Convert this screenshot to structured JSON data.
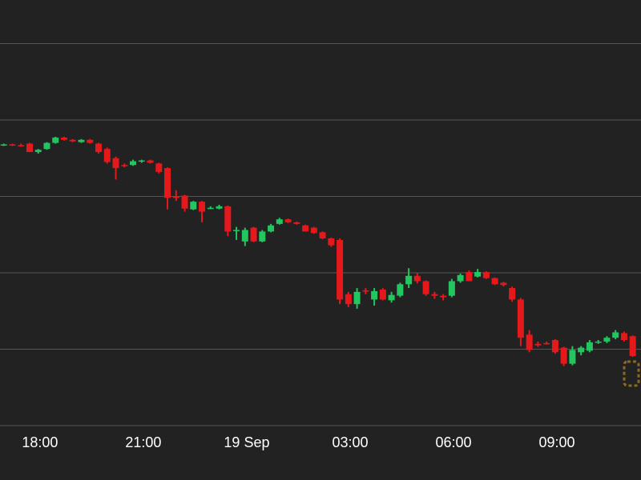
{
  "chart_data": {
    "type": "candlestick",
    "x": [
      16.95,
      17.2,
      17.45,
      17.7,
      17.95,
      18.2,
      18.45,
      18.7,
      18.95,
      19.2,
      19.45,
      19.7,
      19.95,
      20.2,
      20.45,
      20.7,
      20.95,
      21.2,
      21.45,
      21.7,
      21.95,
      22.2,
      22.45,
      22.7,
      22.95,
      23.2,
      23.45,
      23.7,
      23.95,
      24.2,
      24.45,
      24.7,
      24.95,
      25.2,
      25.45,
      25.7,
      25.95,
      26.2,
      26.45,
      26.7,
      26.95,
      27.2,
      27.45,
      27.7,
      27.95,
      28.2,
      28.45,
      28.7,
      28.95,
      29.2,
      29.45,
      29.7,
      29.95,
      30.2,
      30.45,
      30.7,
      30.95,
      31.2,
      31.45,
      31.7,
      31.95,
      32.2,
      32.45,
      32.7,
      32.95,
      33.2,
      33.45,
      33.7,
      33.95,
      34.2,
      34.45,
      34.7,
      34.95,
      35.2
    ],
    "open": [
      367,
      368,
      367,
      369,
      358,
      362,
      370,
      377,
      374,
      371,
      374,
      369,
      362,
      350,
      341,
      341,
      346,
      347,
      343,
      337,
      300,
      301,
      283,
      293,
      285,
      284,
      287,
      256,
      241,
      259,
      241,
      254,
      264,
      270,
      266,
      262,
      259,
      253,
      245,
      243,
      172,
      159,
      177,
      165,
      178,
      164,
      170,
      185,
      196,
      189,
      172,
      170,
      170,
      189,
      201,
      195,
      201,
      193,
      187,
      180,
      165,
      119,
      107,
      108,
      112,
      102,
      81,
      96,
      98,
      110,
      110,
      115,
      121,
      117
    ],
    "high": [
      369,
      369,
      369,
      370,
      362,
      371,
      378,
      378,
      375,
      375,
      375,
      370,
      364,
      352,
      343,
      348,
      348,
      348,
      344,
      338,
      308,
      302,
      294,
      294,
      287,
      289,
      288,
      260,
      259,
      260,
      256,
      264,
      272,
      271,
      267,
      263,
      260,
      254,
      246,
      245,
      175,
      180,
      180,
      180,
      180,
      175,
      187,
      206,
      200,
      190,
      175,
      172,
      192,
      199,
      203,
      205,
      202,
      194,
      188,
      182,
      167,
      125,
      110,
      110,
      113,
      103,
      104,
      104,
      112,
      112,
      117,
      125,
      123,
      118
    ],
    "low": [
      366,
      366,
      365,
      358,
      356,
      361,
      369,
      373,
      371,
      370,
      369,
      356,
      343,
      322,
      338,
      340,
      344,
      343,
      330,
      283,
      294,
      280,
      282,
      266,
      284,
      283,
      248,
      243,
      235,
      240,
      240,
      253,
      263,
      265,
      263,
      254,
      251,
      244,
      234,
      159,
      155,
      153,
      172,
      157,
      164,
      161,
      168,
      180,
      186,
      170,
      166,
      164,
      168,
      187,
      189,
      194,
      192,
      184,
      182,
      162,
      104,
      96,
      103,
      106,
      94,
      78,
      79,
      92,
      96,
      107,
      108,
      113,
      110,
      90
    ],
    "close": [
      368,
      367,
      366,
      358,
      361,
      370,
      377,
      374,
      372,
      374,
      370,
      358,
      345,
      337,
      340,
      346,
      347,
      344,
      332,
      298,
      298,
      284,
      293,
      280,
      285,
      287,
      254,
      256,
      256,
      241,
      254,
      262,
      270,
      266,
      264,
      254,
      252,
      245,
      236,
      165,
      159,
      175,
      176,
      176,
      165,
      171,
      185,
      196,
      189,
      172,
      170,
      168,
      189,
      197,
      189,
      201,
      193,
      185,
      184,
      165,
      115,
      99,
      105,
      107,
      96,
      81,
      99,
      102,
      109,
      110,
      115,
      122,
      112,
      91
    ],
    "up_color": "#22c55e",
    "down_color": "#e5181c",
    "xlim": [
      16.84,
      35.44
    ],
    "xticks": [
      {
        "value": 18,
        "label": "18:00"
      },
      {
        "value": 21,
        "label": "21:00"
      },
      {
        "value": 24,
        "label": "19 Sep"
      },
      {
        "value": 27,
        "label": "03:00"
      },
      {
        "value": 30,
        "label": "06:00"
      },
      {
        "value": 33,
        "label": "09:00"
      }
    ],
    "ylim": [
      0,
      557
    ],
    "yticks": [
      0,
      100,
      200,
      300,
      400,
      500
    ],
    "grid": true
  }
}
